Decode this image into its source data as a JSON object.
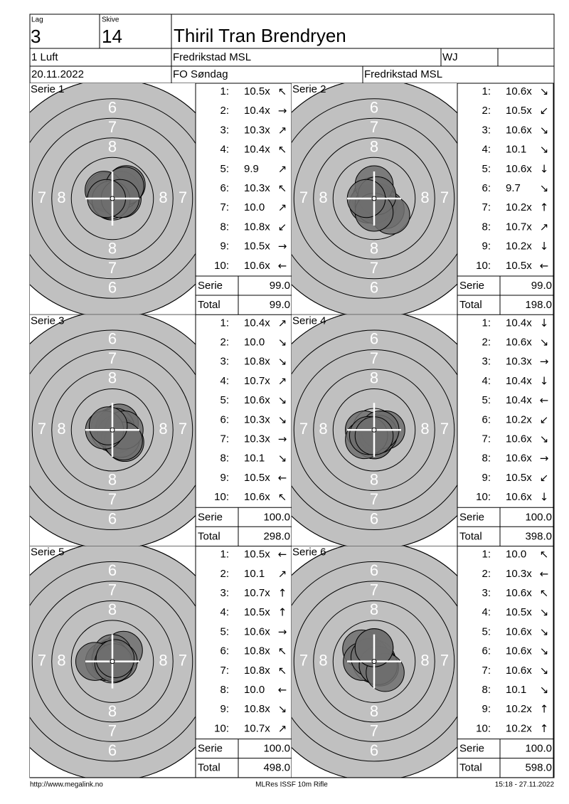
{
  "header": {
    "lag_label": "Lag",
    "lag": "3",
    "skive_label": "Skive",
    "skive": "14",
    "name": "Thiril Tran Brendryen",
    "class": "1 Luft",
    "club": "Fredrikstad MSL",
    "category": "WJ",
    "date": "20.11.2022",
    "event": "FO Søndag",
    "venue": "Fredrikstad MSL"
  },
  "target": {
    "ring_numbers": [
      "6",
      "7",
      "8"
    ]
  },
  "series": [
    {
      "title": "Serie 1",
      "shots": [
        {
          "n": "1:",
          "score": "10.5x",
          "arrow": "↖"
        },
        {
          "n": "2:",
          "score": "10.4x",
          "arrow": "→"
        },
        {
          "n": "3:",
          "score": "10.3x",
          "arrow": "↗"
        },
        {
          "n": "4:",
          "score": "10.4x",
          "arrow": "↖"
        },
        {
          "n": "5:",
          "score": "9.9",
          "arrow": "↗"
        },
        {
          "n": "6:",
          "score": "10.3x",
          "arrow": "↖"
        },
        {
          "n": "7:",
          "score": "10.0",
          "arrow": "↗"
        },
        {
          "n": "8:",
          "score": "10.8x",
          "arrow": "↙"
        },
        {
          "n": "9:",
          "score": "10.5x",
          "arrow": "→"
        },
        {
          "n": "10:",
          "score": "10.6x",
          "arrow": "←"
        }
      ],
      "serie_label": "Serie",
      "serie": "99.0",
      "total_label": "Total",
      "total": "99.0"
    },
    {
      "title": "Serie 2",
      "shots": [
        {
          "n": "1:",
          "score": "10.6x",
          "arrow": "↘"
        },
        {
          "n": "2:",
          "score": "10.5x",
          "arrow": "↙"
        },
        {
          "n": "3:",
          "score": "10.6x",
          "arrow": "↘"
        },
        {
          "n": "4:",
          "score": "10.1",
          "arrow": "↘"
        },
        {
          "n": "5:",
          "score": "10.6x",
          "arrow": "↓"
        },
        {
          "n": "6:",
          "score": "9.7",
          "arrow": "↘"
        },
        {
          "n": "7:",
          "score": "10.2x",
          "arrow": "↑"
        },
        {
          "n": "8:",
          "score": "10.7x",
          "arrow": "↗"
        },
        {
          "n": "9:",
          "score": "10.2x",
          "arrow": "↓"
        },
        {
          "n": "10:",
          "score": "10.5x",
          "arrow": "←"
        }
      ],
      "serie_label": "Serie",
      "serie": "99.0",
      "total_label": "Total",
      "total": "198.0"
    },
    {
      "title": "Serie 3",
      "shots": [
        {
          "n": "1:",
          "score": "10.4x",
          "arrow": "↗"
        },
        {
          "n": "2:",
          "score": "10.0",
          "arrow": "↘"
        },
        {
          "n": "3:",
          "score": "10.8x",
          "arrow": "↘"
        },
        {
          "n": "4:",
          "score": "10.7x",
          "arrow": "↗"
        },
        {
          "n": "5:",
          "score": "10.6x",
          "arrow": "↘"
        },
        {
          "n": "6:",
          "score": "10.3x",
          "arrow": "↘"
        },
        {
          "n": "7:",
          "score": "10.3x",
          "arrow": "→"
        },
        {
          "n": "8:",
          "score": "10.1",
          "arrow": "↘"
        },
        {
          "n": "9:",
          "score": "10.5x",
          "arrow": "←"
        },
        {
          "n": "10:",
          "score": "10.6x",
          "arrow": "↖"
        }
      ],
      "serie_label": "Serie",
      "serie": "100.0",
      "total_label": "Total",
      "total": "298.0"
    },
    {
      "title": "Serie 4",
      "shots": [
        {
          "n": "1:",
          "score": "10.4x",
          "arrow": "↓"
        },
        {
          "n": "2:",
          "score": "10.6x",
          "arrow": "↘"
        },
        {
          "n": "3:",
          "score": "10.3x",
          "arrow": "→"
        },
        {
          "n": "4:",
          "score": "10.4x",
          "arrow": "↓"
        },
        {
          "n": "5:",
          "score": "10.4x",
          "arrow": "←"
        },
        {
          "n": "6:",
          "score": "10.2x",
          "arrow": "↙"
        },
        {
          "n": "7:",
          "score": "10.6x",
          "arrow": "↘"
        },
        {
          "n": "8:",
          "score": "10.6x",
          "arrow": "→"
        },
        {
          "n": "9:",
          "score": "10.5x",
          "arrow": "↙"
        },
        {
          "n": "10:",
          "score": "10.6x",
          "arrow": "↓"
        }
      ],
      "serie_label": "Serie",
      "serie": "100.0",
      "total_label": "Total",
      "total": "398.0"
    },
    {
      "title": "Serie 5",
      "shots": [
        {
          "n": "1:",
          "score": "10.5x",
          "arrow": "←"
        },
        {
          "n": "2:",
          "score": "10.1",
          "arrow": "↗"
        },
        {
          "n": "3:",
          "score": "10.7x",
          "arrow": "↑"
        },
        {
          "n": "4:",
          "score": "10.5x",
          "arrow": "↑"
        },
        {
          "n": "5:",
          "score": "10.6x",
          "arrow": "→"
        },
        {
          "n": "6:",
          "score": "10.8x",
          "arrow": "↖"
        },
        {
          "n": "7:",
          "score": "10.8x",
          "arrow": "↖"
        },
        {
          "n": "8:",
          "score": "10.0",
          "arrow": "←"
        },
        {
          "n": "9:",
          "score": "10.8x",
          "arrow": "↘"
        },
        {
          "n": "10:",
          "score": "10.7x",
          "arrow": "↗"
        }
      ],
      "serie_label": "Serie",
      "serie": "100.0",
      "total_label": "Total",
      "total": "498.0"
    },
    {
      "title": "Serie 6",
      "shots": [
        {
          "n": "1:",
          "score": "10.0",
          "arrow": "↖"
        },
        {
          "n": "2:",
          "score": "10.3x",
          "arrow": "←"
        },
        {
          "n": "3:",
          "score": "10.6x",
          "arrow": "↖"
        },
        {
          "n": "4:",
          "score": "10.5x",
          "arrow": "↘"
        },
        {
          "n": "5:",
          "score": "10.6x",
          "arrow": "↘"
        },
        {
          "n": "6:",
          "score": "10.6x",
          "arrow": "↘"
        },
        {
          "n": "7:",
          "score": "10.6x",
          "arrow": "↘"
        },
        {
          "n": "8:",
          "score": "10.1",
          "arrow": "↘"
        },
        {
          "n": "9:",
          "score": "10.2x",
          "arrow": "↑"
        },
        {
          "n": "10:",
          "score": "10.2x",
          "arrow": "↑"
        }
      ],
      "serie_label": "Serie",
      "serie": "100.0",
      "total_label": "Total",
      "total": "598.0"
    }
  ],
  "footer": {
    "url": "http://www.megalink.no",
    "program": "MLRes ISSF 10m Rifle",
    "timestamp": "15:18 - 27.11.2022"
  }
}
